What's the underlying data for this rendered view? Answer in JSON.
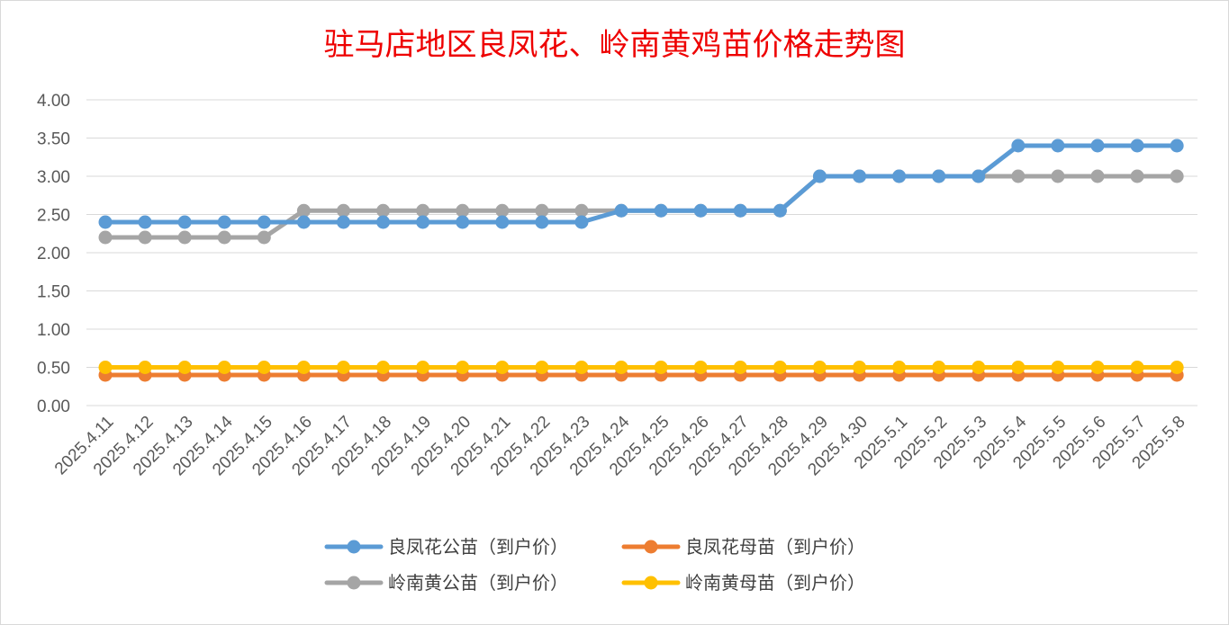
{
  "chart_data": {
    "type": "line",
    "title": "驻马店地区良凤花、岭南黄鸡苗价格走势图",
    "xlabel": "",
    "ylabel": "",
    "ylim": [
      0,
      4
    ],
    "y_ticks": [
      "0.00",
      "0.50",
      "1.00",
      "1.50",
      "2.00",
      "2.50",
      "3.00",
      "3.50",
      "4.00"
    ],
    "grid": true,
    "legend_position": "bottom",
    "categories": [
      "2025.4.11",
      "2025.4.12",
      "2025.4.13",
      "2025.4.14",
      "2025.4.15",
      "2025.4.16",
      "2025.4.17",
      "2025.4.18",
      "2025.4.19",
      "2025.4.20",
      "2025.4.21",
      "2025.4.22",
      "2025.4.23",
      "2025.4.24",
      "2025.4.25",
      "2025.4.26",
      "2025.4.27",
      "2025.4.28",
      "2025.4.29",
      "2025.4.30",
      "2025.5.1",
      "2025.5.2",
      "2025.5.3",
      "2025.5.4",
      "2025.5.5",
      "2025.5.6",
      "2025.5.7",
      "2025.5.8"
    ],
    "series": [
      {
        "name": "良凤花公苗（到户价）",
        "color": "#5b9bd5",
        "values": [
          2.4,
          2.4,
          2.4,
          2.4,
          2.4,
          2.4,
          2.4,
          2.4,
          2.4,
          2.4,
          2.4,
          2.4,
          2.4,
          2.55,
          2.55,
          2.55,
          2.55,
          2.55,
          3.0,
          3.0,
          3.0,
          3.0,
          3.0,
          3.4,
          3.4,
          3.4,
          3.4,
          3.4
        ]
      },
      {
        "name": "良凤花母苗（到户价）",
        "color": "#ed7d31",
        "values": [
          0.4,
          0.4,
          0.4,
          0.4,
          0.4,
          0.4,
          0.4,
          0.4,
          0.4,
          0.4,
          0.4,
          0.4,
          0.4,
          0.4,
          0.4,
          0.4,
          0.4,
          0.4,
          0.4,
          0.4,
          0.4,
          0.4,
          0.4,
          0.4,
          0.4,
          0.4,
          0.4,
          0.4
        ]
      },
      {
        "name": "岭南黄公苗（到户价）",
        "color": "#a5a5a5",
        "values": [
          2.2,
          2.2,
          2.2,
          2.2,
          2.2,
          2.55,
          2.55,
          2.55,
          2.55,
          2.55,
          2.55,
          2.55,
          2.55,
          2.55,
          2.55,
          2.55,
          2.55,
          2.55,
          3.0,
          3.0,
          3.0,
          3.0,
          3.0,
          3.0,
          3.0,
          3.0,
          3.0,
          3.0
        ]
      },
      {
        "name": "岭南黄母苗（到户价）",
        "color": "#ffc000",
        "values": [
          0.5,
          0.5,
          0.5,
          0.5,
          0.5,
          0.5,
          0.5,
          0.5,
          0.5,
          0.5,
          0.5,
          0.5,
          0.5,
          0.5,
          0.5,
          0.5,
          0.5,
          0.5,
          0.5,
          0.5,
          0.5,
          0.5,
          0.5,
          0.5,
          0.5,
          0.5,
          0.5,
          0.5
        ]
      }
    ]
  }
}
